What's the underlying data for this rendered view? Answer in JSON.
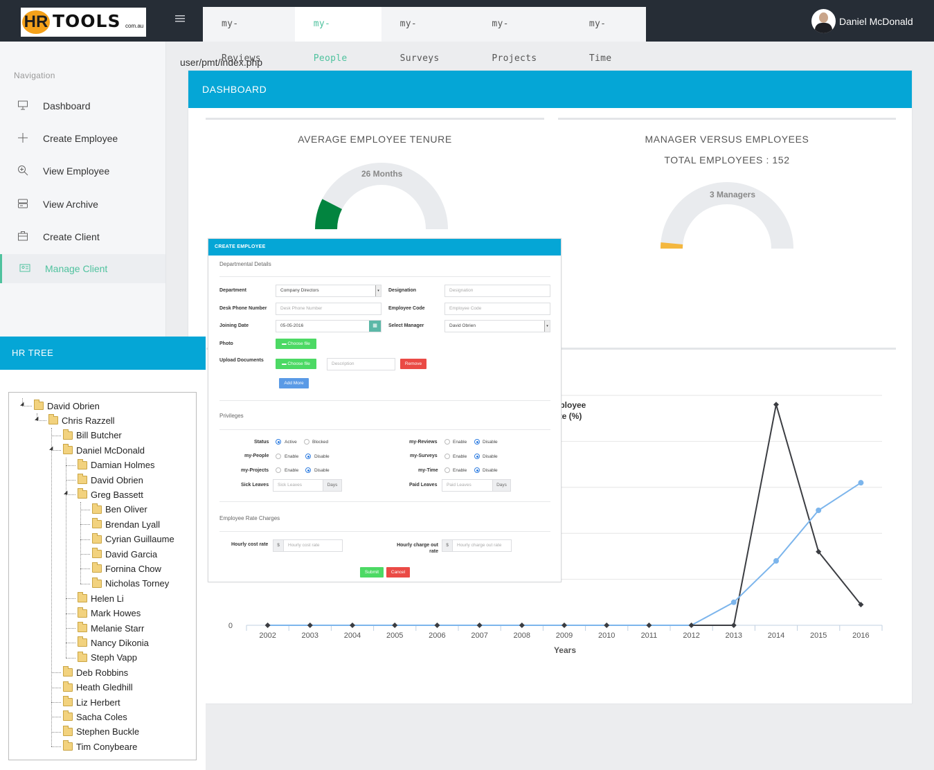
{
  "topbar": {
    "logo": {
      "hr": "HR",
      "tools": "TOOLS",
      "suffix": "com.au"
    },
    "tabs": [
      "my-Reviews",
      "my-People",
      "my-Surveys",
      "my-Projects",
      "my-Time"
    ],
    "active_tab": "my-People",
    "user_name": "Daniel McDonald"
  },
  "sidebar": {
    "title": "Navigation",
    "items": [
      {
        "label": "Dashboard",
        "icon": "monitor-icon"
      },
      {
        "label": "Create Employee",
        "icon": "plus-icon"
      },
      {
        "label": "View Employee",
        "icon": "zoom-icon"
      },
      {
        "label": "View Archive",
        "icon": "archive-icon"
      },
      {
        "label": "Create Client",
        "icon": "briefcase-icon"
      },
      {
        "label": "Manage Client",
        "icon": "id-card-icon"
      }
    ],
    "active_item": "Manage Client"
  },
  "hr_tree": {
    "title": "HR TREE",
    "nodes": [
      "David Obrien",
      "Chris Razzell",
      "Bill Butcher",
      "Daniel McDonald",
      "Damian Holmes",
      "David Obrien",
      "Greg Bassett",
      "Ben Oliver",
      "Brendan Lyall",
      "Cyrian Guillaume",
      "David Garcia",
      "Fornina Chow",
      "Nicholas Torney",
      "Helen Li",
      "Mark Howes",
      "Melanie Starr",
      "Nancy Dikonia",
      "Steph Vapp",
      "Deb Robbins",
      "Heath Gledhill",
      "Liz Herbert",
      "Sacha Coles",
      "Stephen Buckle",
      "Tim Conybeare"
    ]
  },
  "url": "user/pmt/index.php",
  "dashboard": {
    "title": "DASHBOARD",
    "tenure": {
      "title": "AVERAGE EMPLOYEE TENURE",
      "value_label": "26 Months",
      "fill_fraction": 0.15,
      "fill_color": "#02843f"
    },
    "managers": {
      "title": "MANAGER VERSUS EMPLOYEES",
      "subtitle": "TOTAL EMPLOYEES : 152",
      "value_label": "3 Managers",
      "fill_fraction": 0.03,
      "fill_color": "#f4b73f"
    },
    "gauge_track_color": "#e9ebee"
  },
  "chart_data": {
    "type": "line",
    "title_fragment": [
      "nployee",
      "ate (%)"
    ],
    "xlabel": "Years",
    "ylabel": "",
    "x": [
      "2002",
      "2003",
      "2004",
      "2005",
      "2006",
      "2007",
      "2008",
      "2009",
      "2010",
      "2011",
      "2012",
      "2013",
      "2014",
      "2015",
      "2016"
    ],
    "y_tick_labels": [
      "0"
    ],
    "ylim": [
      0,
      5
    ],
    "series": [
      {
        "values": [
          0,
          0,
          0,
          0,
          0,
          0,
          0,
          0,
          0,
          0,
          0,
          0,
          4.8,
          1.6,
          0.45
        ],
        "color": "#3b3d42"
      },
      {
        "values": [
          0,
          0,
          0,
          0,
          0,
          0,
          0,
          0,
          0,
          0,
          0,
          0.5,
          1.4,
          2.5,
          3.1
        ],
        "color": "#7cb5ec"
      }
    ],
    "grid": true
  },
  "modal": {
    "title": "CREATE EMPLOYEE",
    "section_departmental": "Departmental Details",
    "department_label": "Department",
    "department_value": "Company Directors",
    "designation_label": "Designation",
    "designation_placeholder": "Designation",
    "desk_phone_label": "Desk Phone Number",
    "desk_phone_placeholder": "Desk Phone Number",
    "employee_code_label": "Employee Code",
    "employee_code_placeholder": "Employee Code",
    "joining_date_label": "Joining Date",
    "joining_date_value": "05-05-2016",
    "select_manager_label": "Select Manager",
    "select_manager_value": "David Obrien",
    "photo_label": "Photo",
    "choose_file": "Choose file",
    "upload_label": "Upload Documents",
    "description_placeholder": "Description",
    "remove": "Remove",
    "add_more": "Add More",
    "section_privileges": "Privileges",
    "status_label": "Status",
    "active": "Active",
    "blocked": "Blocked",
    "enable": "Enable",
    "disable": "Disable",
    "my_reviews": "my-Reviews",
    "my_people": "my-People",
    "my_surveys": "my-Surveys",
    "my_projects": "my-Projects",
    "my_time": "my-Time",
    "sick_leaves_label": "Sick Leaves",
    "sick_leaves_placeholder": "Sick Leaves",
    "paid_leaves_label": "Paid Leaves",
    "paid_leaves_placeholder": "Paid Leaves",
    "days": "Days",
    "section_rates": "Employee Rate Charges",
    "hourly_cost_label": "Hourly cost rate",
    "hourly_cost_placeholder": "Hourly cost rate",
    "hourly_charge_label": "Hourly charge out rate",
    "hourly_charge_placeholder": "Hourly charge out rate",
    "currency": "$",
    "submit": "Submit",
    "cancel": "Cancel"
  }
}
